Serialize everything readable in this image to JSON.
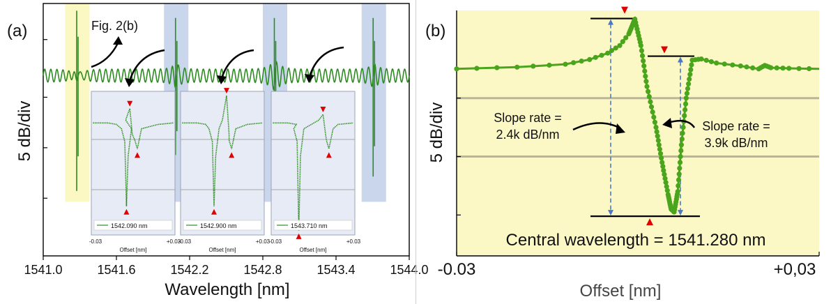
{
  "colors": {
    "trace": "#2e8b22",
    "trace_b": "#4aa51c",
    "marker": "#e00000",
    "band_yellow": "#fbf8c4",
    "band_blue": "#c9d6ec",
    "panel_b_bg": "#fbf8c6",
    "inset_bg": "#e6ebf5",
    "arrow_dashed": "#4a78c4"
  },
  "panel_a": {
    "panel_label": "(a)",
    "callout": "Fig. 2(b)",
    "chart_data": {
      "type": "line",
      "xlabel": "Wavelength [nm]",
      "ylabel": "5 dB/div",
      "xlim": [
        1541.0,
        1544.0
      ],
      "x_ticks": [
        "1541.0",
        "1541.6",
        "1542.2",
        "1542.8",
        "1543.4",
        "1544.0"
      ],
      "x_tick_values": [
        1541.0,
        1541.6,
        1542.2,
        1542.8,
        1543.4,
        1544.0
      ],
      "ylim": [
        -25,
        10
      ],
      "y_tick_values": [
        -17,
        -10,
        -3,
        5
      ],
      "baseline_db": 0,
      "ripple_period_nm": 0.05,
      "resonances": [
        {
          "center": 1541.28,
          "peak": 9.0,
          "dip": -16.0,
          "highlight": "yellow"
        },
        {
          "center": 1542.09,
          "peak": 8.0,
          "dip": -11.0,
          "highlight": "blue"
        },
        {
          "center": 1542.9,
          "peak": 8.0,
          "dip": -12.0,
          "highlight": "blue"
        },
        {
          "center": 1543.71,
          "peak": 8.0,
          "dip": -14.0,
          "highlight": "blue"
        }
      ],
      "insets": [
        {
          "legend": "1542.090 nm",
          "xlabel": "Offset [nm]",
          "x_ticks": [
            "-0.03",
            "+0.03"
          ]
        },
        {
          "legend": "1542.900 nm",
          "xlabel": "Offset [nm]",
          "x_ticks": [
            "-0.03",
            "+0.03"
          ]
        },
        {
          "legend": "1543.710 nm",
          "xlabel": "Offset [nm]",
          "x_ticks": [
            "-0.03",
            "+0.03"
          ]
        }
      ]
    }
  },
  "panel_b": {
    "panel_label": "(b)",
    "chart_data": {
      "type": "line",
      "xlabel": "Offset [nm]",
      "ylabel": "5 dB/div",
      "x_ticks": [
        "-0.03",
        "+0,03"
      ],
      "xlim": [
        -0.03,
        0.03
      ],
      "y_grid_values": [
        -5,
        -15
      ],
      "ylim": [
        -32,
        10
      ],
      "series": [
        {
          "x": [
            -0.03,
            -0.02,
            -0.012,
            -0.008,
            -0.005,
            -0.003,
            -0.0015,
            -0.0005,
            0.0005,
            0.0015,
            0.003,
            0.004,
            0.005,
            0.0055,
            0.006,
            0.0066,
            0.0072,
            0.008,
            0.009,
            0.0105,
            0.013,
            0.017,
            0.02,
            0.021,
            0.022,
            0.025,
            0.03
          ],
          "y": [
            0,
            0.3,
            0.8,
            1.6,
            2.7,
            4.0,
            6.0,
            8.5,
            4.0,
            -3.0,
            -10.0,
            -16.0,
            -21.5,
            -24.0,
            -24.5,
            -21.0,
            -13.0,
            -5.0,
            1.5,
            1.7,
            1.0,
            0.5,
            0.0,
            0.6,
            0.2,
            0.1,
            0.0
          ]
        }
      ],
      "annotations": {
        "slope_left": [
          "Slope rate =",
          "2.4k dB/nm"
        ],
        "slope_right": [
          "Slope rate =",
          "3.9k dB/nm"
        ],
        "central": "Central wavelength = 1541.280 nm"
      }
    }
  }
}
